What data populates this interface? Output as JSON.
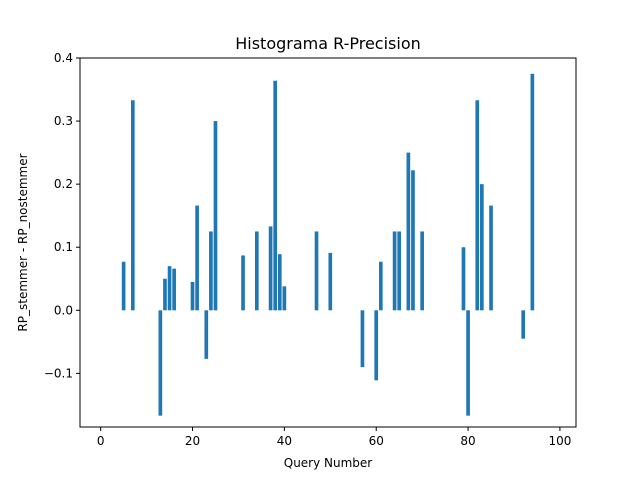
{
  "chart_data": {
    "type": "bar",
    "title": "Histograma R-Precision",
    "xlabel": "Query Number",
    "ylabel": "RP_stemmer - RP_nostemmer",
    "xlim": [
      -4.5,
      103.5
    ],
    "ylim": [
      -0.185,
      0.4
    ],
    "xticks": [
      0,
      20,
      40,
      60,
      80,
      100
    ],
    "xtick_labels": [
      "0",
      "20",
      "40",
      "60",
      "80",
      "100"
    ],
    "yticks": [
      -0.1,
      0.0,
      0.1,
      0.2,
      0.3,
      0.4
    ],
    "ytick_labels": [
      "−0.1",
      "0.0",
      "0.1",
      "0.2",
      "0.3",
      "0.4"
    ],
    "grid": false,
    "color": "#1f77b4",
    "x": [
      5,
      7,
      13,
      14,
      15,
      16,
      20,
      21,
      23,
      24,
      25,
      31,
      34,
      37,
      38,
      39,
      40,
      47,
      50,
      57,
      60,
      61,
      64,
      65,
      67,
      68,
      70,
      79,
      80,
      82,
      83,
      85,
      92,
      94
    ],
    "values": [
      0.077,
      0.333,
      -0.167,
      0.05,
      0.07,
      0.066,
      0.045,
      0.166,
      -0.077,
      0.125,
      0.3,
      0.087,
      0.125,
      0.133,
      0.364,
      0.089,
      0.038,
      0.125,
      0.091,
      -0.09,
      -0.111,
      0.077,
      0.125,
      0.125,
      0.25,
      0.222,
      0.125,
      0.1,
      -0.167,
      0.333,
      0.2,
      0.166,
      -0.045,
      0.375
    ]
  }
}
